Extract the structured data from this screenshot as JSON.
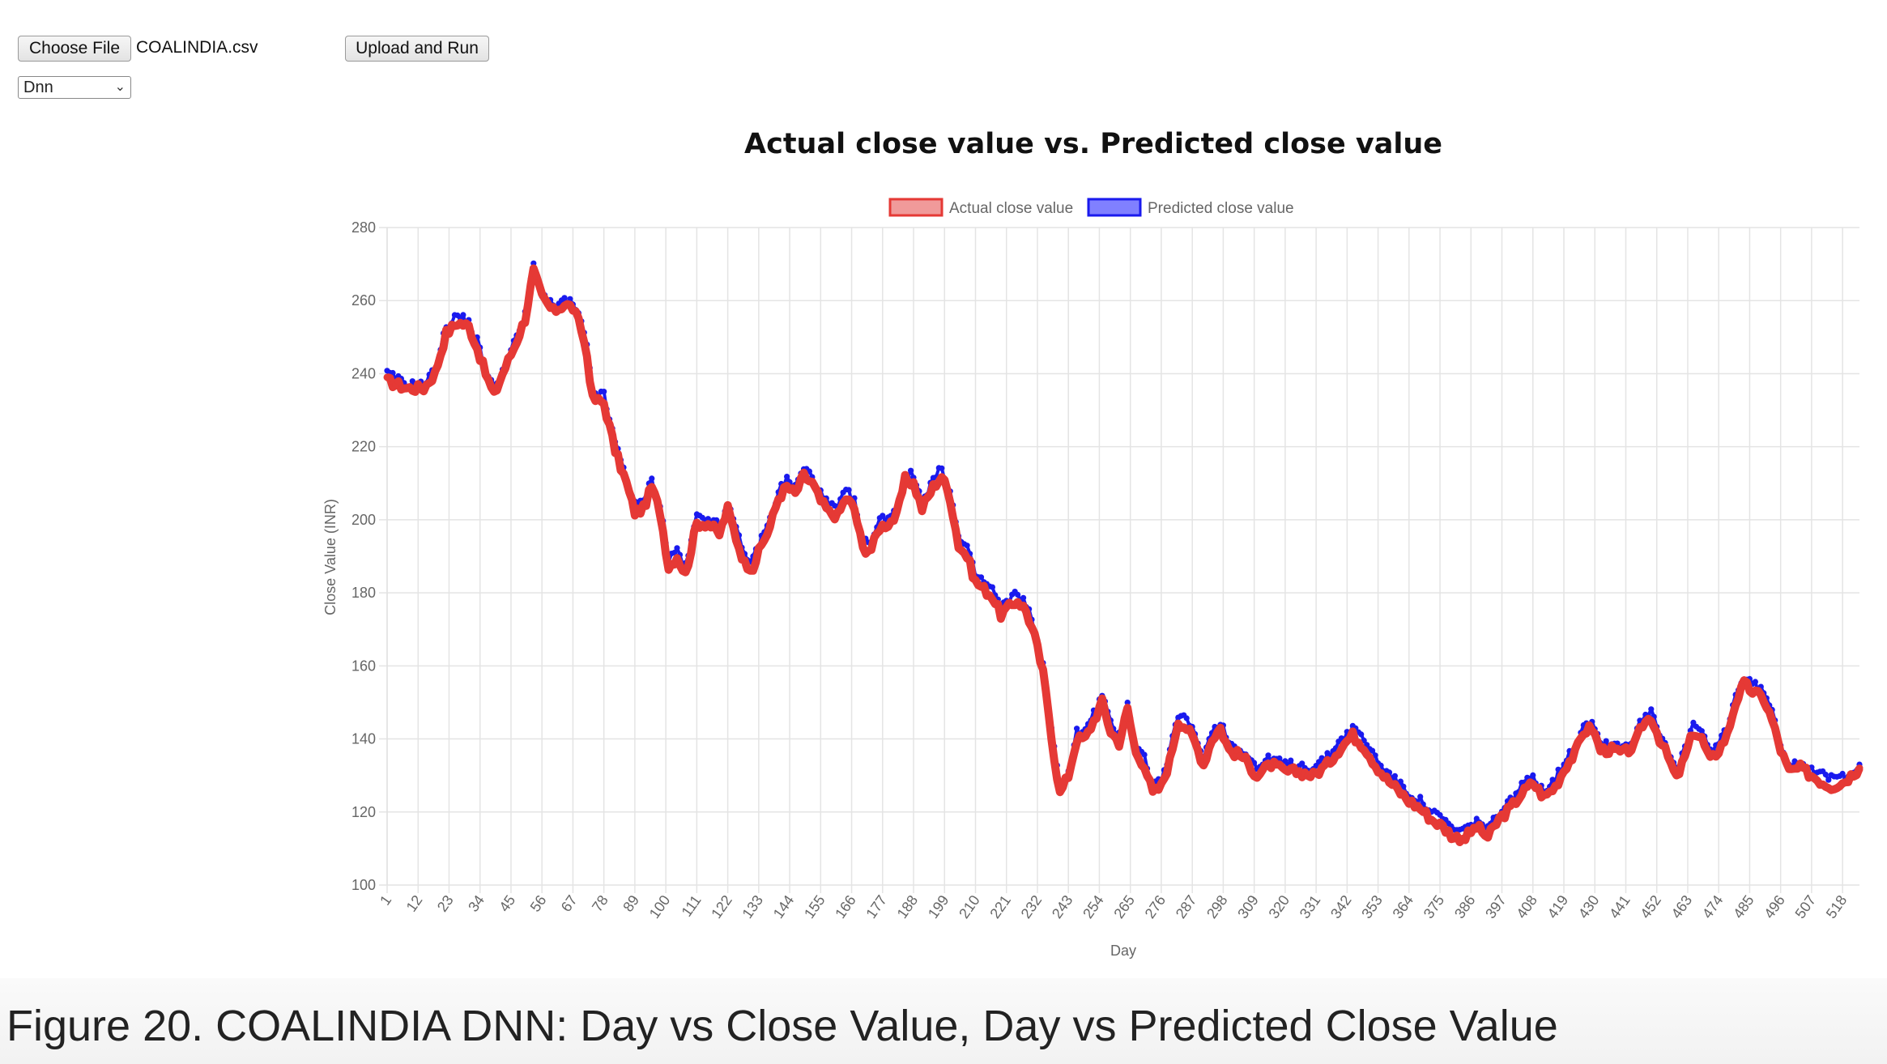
{
  "controls": {
    "choose_file_label": "Choose File",
    "file_name": "COALINDIA.csv",
    "upload_label": "Upload and Run",
    "model_selected": "Dnn"
  },
  "caption": "Figure 20. COALINDIA DNN: Day vs Close Value, Day vs Predicted Close Value",
  "chart_data": {
    "type": "line",
    "title": "Actual close value vs. Predicted close value",
    "xlabel": "Day",
    "ylabel": "Close Value (INR)",
    "ylim": [
      100,
      280
    ],
    "xlim": [
      1,
      524
    ],
    "y_ticks": [
      100,
      120,
      140,
      160,
      180,
      200,
      220,
      240,
      260,
      280
    ],
    "x_tick_labels": [
      "1",
      "12",
      "23",
      "34",
      "45",
      "56",
      "67",
      "78",
      "89",
      "100",
      "111",
      "122",
      "133",
      "144",
      "155",
      "166",
      "177",
      "188",
      "199",
      "210",
      "221",
      "232",
      "243",
      "254",
      "265",
      "276",
      "287",
      "298",
      "309",
      "320",
      "331",
      "342",
      "353",
      "364",
      "375",
      "386",
      "397",
      "408",
      "419",
      "430",
      "441",
      "452",
      "463",
      "474",
      "485",
      "496",
      "507",
      "518"
    ],
    "grid": true,
    "legend_position": "top",
    "colors": {
      "actual": "#e53935",
      "actual_fill": "#f09a9a",
      "predicted": "#1a1aee",
      "predicted_fill": "#8080ff"
    },
    "series": [
      {
        "name": "Actual close value",
        "key_points": [
          [
            1,
            238
          ],
          [
            8,
            236
          ],
          [
            14,
            236
          ],
          [
            18,
            240
          ],
          [
            22,
            251
          ],
          [
            26,
            254
          ],
          [
            30,
            253
          ],
          [
            33,
            247
          ],
          [
            36,
            240
          ],
          [
            39,
            234
          ],
          [
            42,
            240
          ],
          [
            46,
            247
          ],
          [
            50,
            255
          ],
          [
            53,
            268
          ],
          [
            56,
            261
          ],
          [
            60,
            257
          ],
          [
            64,
            259
          ],
          [
            67,
            258
          ],
          [
            70,
            252
          ],
          [
            72,
            245
          ],
          [
            74,
            233
          ],
          [
            78,
            232
          ],
          [
            82,
            219
          ],
          [
            86,
            210
          ],
          [
            89,
            202
          ],
          [
            92,
            203
          ],
          [
            95,
            209
          ],
          [
            98,
            202
          ],
          [
            101,
            187
          ],
          [
            104,
            190
          ],
          [
            107,
            185
          ],
          [
            111,
            199
          ],
          [
            115,
            199
          ],
          [
            119,
            196
          ],
          [
            122,
            203
          ],
          [
            125,
            195
          ],
          [
            128,
            188
          ],
          [
            131,
            187
          ],
          [
            134,
            193
          ],
          [
            137,
            198
          ],
          [
            140,
            206
          ],
          [
            143,
            209
          ],
          [
            146,
            207
          ],
          [
            149,
            212
          ],
          [
            152,
            210
          ],
          [
            155,
            205
          ],
          [
            158,
            202
          ],
          [
            161,
            201
          ],
          [
            164,
            206
          ],
          [
            167,
            203
          ],
          [
            170,
            192
          ],
          [
            173,
            192
          ],
          [
            176,
            198
          ],
          [
            179,
            199
          ],
          [
            182,
            201
          ],
          [
            185,
            211
          ],
          [
            188,
            210
          ],
          [
            191,
            203
          ],
          [
            195,
            209
          ],
          [
            198,
            212
          ],
          [
            201,
            206
          ],
          [
            204,
            193
          ],
          [
            207,
            190
          ],
          [
            210,
            183
          ],
          [
            213,
            181
          ],
          [
            216,
            179
          ],
          [
            219,
            174
          ],
          [
            222,
            176
          ],
          [
            225,
            178
          ],
          [
            228,
            175
          ],
          [
            231,
            168
          ],
          [
            234,
            158
          ],
          [
            236,
            147
          ],
          [
            238,
            135
          ],
          [
            240,
            125
          ],
          [
            243,
            130
          ],
          [
            246,
            140
          ],
          [
            249,
            140
          ],
          [
            252,
            145
          ],
          [
            255,
            150
          ],
          [
            258,
            142
          ],
          [
            261,
            139
          ],
          [
            264,
            148
          ],
          [
            267,
            136
          ],
          [
            270,
            133
          ],
          [
            273,
            125
          ],
          [
            276,
            127
          ],
          [
            279,
            134
          ],
          [
            282,
            145
          ],
          [
            285,
            143
          ],
          [
            288,
            139
          ],
          [
            291,
            133
          ],
          [
            294,
            140
          ],
          [
            297,
            143
          ],
          [
            300,
            137
          ],
          [
            305,
            135
          ],
          [
            310,
            130
          ],
          [
            315,
            133
          ],
          [
            320,
            131
          ],
          [
            325,
            131
          ],
          [
            330,
            130
          ],
          [
            335,
            133
          ],
          [
            340,
            138
          ],
          [
            344,
            141
          ],
          [
            348,
            138
          ],
          [
            352,
            133
          ],
          [
            356,
            129
          ],
          [
            360,
            126
          ],
          [
            364,
            123
          ],
          [
            368,
            121
          ],
          [
            372,
            118
          ],
          [
            376,
            116
          ],
          [
            380,
            113
          ],
          [
            384,
            113
          ],
          [
            388,
            116
          ],
          [
            392,
            113
          ],
          [
            396,
            118
          ],
          [
            400,
            121
          ],
          [
            404,
            125
          ],
          [
            408,
            128
          ],
          [
            412,
            124
          ],
          [
            416,
            127
          ],
          [
            420,
            133
          ],
          [
            423,
            136
          ],
          [
            426,
            142
          ],
          [
            429,
            143
          ],
          [
            432,
            137
          ],
          [
            436,
            137
          ],
          [
            440,
            136
          ],
          [
            444,
            138
          ],
          [
            447,
            144
          ],
          [
            450,
            146
          ],
          [
            453,
            140
          ],
          [
            456,
            135
          ],
          [
            459,
            129
          ],
          [
            462,
            135
          ],
          [
            465,
            142
          ],
          [
            468,
            140
          ],
          [
            471,
            134
          ],
          [
            474,
            137
          ],
          [
            477,
            141
          ],
          [
            480,
            150
          ],
          [
            483,
            155
          ],
          [
            486,
            153
          ],
          [
            490,
            151
          ],
          [
            493,
            145
          ],
          [
            496,
            137
          ],
          [
            499,
            131
          ],
          [
            503,
            132
          ],
          [
            507,
            130
          ],
          [
            511,
            128
          ],
          [
            514,
            127
          ],
          [
            518,
            128
          ],
          [
            521,
            130
          ],
          [
            524,
            132
          ]
        ]
      },
      {
        "name": "Predicted close value",
        "key_points": [
          [
            1,
            240
          ],
          [
            8,
            237
          ],
          [
            14,
            237
          ],
          [
            18,
            241
          ],
          [
            22,
            253
          ],
          [
            26,
            256
          ],
          [
            30,
            254
          ],
          [
            33,
            249
          ],
          [
            36,
            241
          ],
          [
            39,
            236
          ],
          [
            42,
            241
          ],
          [
            46,
            248
          ],
          [
            50,
            256
          ],
          [
            53,
            270
          ],
          [
            56,
            262
          ],
          [
            60,
            258
          ],
          [
            64,
            260
          ],
          [
            67,
            259
          ],
          [
            70,
            254
          ],
          [
            72,
            247
          ],
          [
            74,
            235
          ],
          [
            78,
            234
          ],
          [
            82,
            221
          ],
          [
            86,
            212
          ],
          [
            89,
            204
          ],
          [
            92,
            205
          ],
          [
            95,
            211
          ],
          [
            98,
            204
          ],
          [
            101,
            189
          ],
          [
            104,
            192
          ],
          [
            107,
            187
          ],
          [
            111,
            201
          ],
          [
            115,
            201
          ],
          [
            119,
            198
          ],
          [
            122,
            205
          ],
          [
            125,
            197
          ],
          [
            128,
            190
          ],
          [
            131,
            189
          ],
          [
            134,
            195
          ],
          [
            137,
            200
          ],
          [
            140,
            208
          ],
          [
            143,
            211
          ],
          [
            146,
            209
          ],
          [
            149,
            214
          ],
          [
            152,
            212
          ],
          [
            155,
            207
          ],
          [
            158,
            204
          ],
          [
            161,
            203
          ],
          [
            164,
            208
          ],
          [
            167,
            205
          ],
          [
            170,
            194
          ],
          [
            173,
            194
          ],
          [
            176,
            200
          ],
          [
            179,
            201
          ],
          [
            182,
            203
          ],
          [
            185,
            213
          ],
          [
            188,
            212
          ],
          [
            191,
            205
          ],
          [
            195,
            211
          ],
          [
            198,
            214
          ],
          [
            201,
            208
          ],
          [
            204,
            195
          ],
          [
            207,
            192
          ],
          [
            210,
            185
          ],
          [
            213,
            183
          ],
          [
            216,
            181
          ],
          [
            219,
            176
          ],
          [
            222,
            178
          ],
          [
            225,
            180
          ],
          [
            228,
            177
          ],
          [
            231,
            170
          ],
          [
            234,
            160
          ],
          [
            236,
            149
          ],
          [
            238,
            137
          ],
          [
            240,
            127
          ],
          [
            243,
            131
          ],
          [
            246,
            142
          ],
          [
            249,
            142
          ],
          [
            252,
            147
          ],
          [
            255,
            152
          ],
          [
            258,
            144
          ],
          [
            261,
            141
          ],
          [
            264,
            150
          ],
          [
            267,
            138
          ],
          [
            270,
            135
          ],
          [
            273,
            127
          ],
          [
            276,
            129
          ],
          [
            279,
            136
          ],
          [
            282,
            147
          ],
          [
            285,
            145
          ],
          [
            288,
            141
          ],
          [
            291,
            135
          ],
          [
            294,
            142
          ],
          [
            297,
            145
          ],
          [
            300,
            139
          ],
          [
            305,
            137
          ],
          [
            310,
            132
          ],
          [
            315,
            135
          ],
          [
            320,
            133
          ],
          [
            325,
            133
          ],
          [
            330,
            132
          ],
          [
            335,
            135
          ],
          [
            340,
            140
          ],
          [
            344,
            143
          ],
          [
            348,
            140
          ],
          [
            352,
            135
          ],
          [
            356,
            131
          ],
          [
            360,
            128
          ],
          [
            364,
            125
          ],
          [
            368,
            123
          ],
          [
            372,
            120
          ],
          [
            376,
            118
          ],
          [
            380,
            115
          ],
          [
            384,
            115
          ],
          [
            388,
            118
          ],
          [
            392,
            115
          ],
          [
            396,
            120
          ],
          [
            400,
            123
          ],
          [
            404,
            127
          ],
          [
            408,
            130
          ],
          [
            412,
            126
          ],
          [
            416,
            129
          ],
          [
            420,
            135
          ],
          [
            423,
            138
          ],
          [
            426,
            144
          ],
          [
            429,
            145
          ],
          [
            432,
            139
          ],
          [
            436,
            139
          ],
          [
            440,
            138
          ],
          [
            444,
            140
          ],
          [
            447,
            146
          ],
          [
            450,
            148
          ],
          [
            453,
            142
          ],
          [
            456,
            137
          ],
          [
            459,
            131
          ],
          [
            462,
            137
          ],
          [
            465,
            144
          ],
          [
            468,
            142
          ],
          [
            471,
            136
          ],
          [
            474,
            139
          ],
          [
            477,
            143
          ],
          [
            480,
            152
          ],
          [
            483,
            157
          ],
          [
            486,
            155
          ],
          [
            490,
            153
          ],
          [
            493,
            147
          ],
          [
            496,
            139
          ],
          [
            499,
            133
          ],
          [
            503,
            134
          ],
          [
            507,
            132
          ],
          [
            511,
            130
          ],
          [
            514,
            129
          ],
          [
            518,
            130
          ],
          [
            521,
            131
          ],
          [
            524,
            133
          ]
        ]
      }
    ]
  }
}
